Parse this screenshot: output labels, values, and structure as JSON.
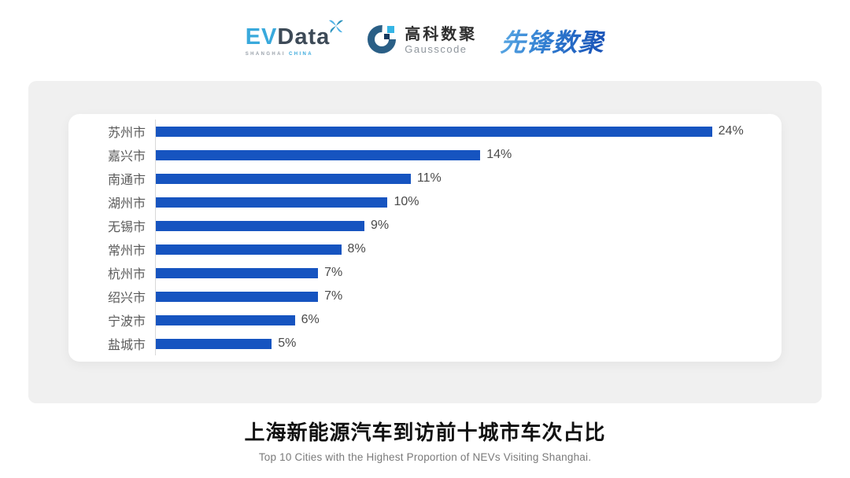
{
  "header": {
    "evdata": {
      "ev": "EV",
      "data": "Data",
      "caption_shanghai": "SHANGHAI",
      "caption_china": "CHINA"
    },
    "gausscode": {
      "cn": "高科数聚",
      "en": "Gausscode"
    },
    "pioneer": {
      "text": "先锋数聚"
    }
  },
  "chart_data": {
    "type": "bar",
    "orientation": "horizontal",
    "categories": [
      "苏州市",
      "嘉兴市",
      "南通市",
      "湖州市",
      "无锡市",
      "常州市",
      "杭州市",
      "绍兴市",
      "宁波市",
      "盐城市"
    ],
    "values": [
      24,
      14,
      11,
      10,
      9,
      8,
      7,
      7,
      6,
      5
    ],
    "value_suffix": "%",
    "value_label_position": "end-of-bar",
    "xlim": [
      0,
      27
    ],
    "grid": false,
    "legend": false,
    "bar_color": "#1654c0",
    "axis_line_color": "#d9d9d9",
    "category_label_color": "#5a5a5a",
    "value_label_color": "#4a4a4a",
    "title": "上海新能源汽车到访前十城市车次占比",
    "subtitle": "Top 10 Cities with the Highest Proportion of  NEVs Visiting Shanghai.",
    "xlabel": "",
    "ylabel": ""
  },
  "caption": {
    "title": "上海新能源汽车到访前十城市车次占比",
    "subtitle": "Top 10 Cities with the Highest Proportion of  NEVs Visiting Shanghai."
  },
  "colors": {
    "page_bg": "#ffffff",
    "panel_bg": "#f0f0f0",
    "card_bg": "#ffffff",
    "bar_blue": "#1654c0",
    "evdata_blue": "#39a9dc",
    "evdata_dark": "#3d4a57",
    "gauss_mark_blue": "#2a5f86",
    "gauss_cyan": "#35b5e5",
    "gauss_navy": "#16395e",
    "pioneer_blue_light": "#55a4e2",
    "pioneer_blue_dark": "#1b55b8"
  }
}
